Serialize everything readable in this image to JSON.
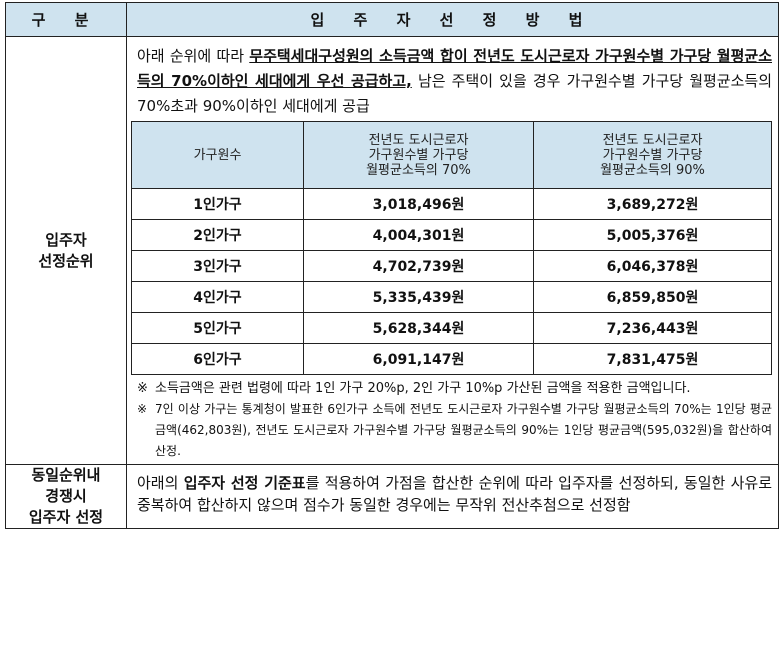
{
  "header": {
    "col1": "구 분",
    "col2": "입 주 자 선 정 방 법"
  },
  "section1": {
    "label_line1": "입주자",
    "label_line2": "선정순위",
    "intro": {
      "part1": "아래 순위에 따라 ",
      "bold": "무주택세대구성원의 소득금액 합이 전년도 도시근로자 가구원수별 가구당 월평균소득의 70%이하인 세대에게 우선 공급하고,",
      "part2": " 남은 주택이 있을 경우 가구원수별 가구당 월평균소득의 70%초과 90%이하인 세대에게 공급"
    },
    "table": {
      "headers": [
        [
          "가구원수"
        ],
        [
          "전년도 도시근로자",
          "가구원수별 가구당",
          "월평균소득의 70%"
        ],
        [
          "전년도 도시근로자",
          "가구원수별 가구당",
          "월평균소득의 90%"
        ]
      ],
      "rows": [
        [
          "1인가구",
          "3,018,496원",
          "3,689,272원"
        ],
        [
          "2인가구",
          "4,004,301원",
          "5,005,376원"
        ],
        [
          "3인가구",
          "4,702,739원",
          "6,046,378원"
        ],
        [
          "4인가구",
          "5,335,439원",
          "6,859,850원"
        ],
        [
          "5인가구",
          "5,628,344원",
          "7,236,443원"
        ],
        [
          "6인가구",
          "6,091,147원",
          "7,831,475원"
        ]
      ]
    },
    "notes": [
      {
        "mark": "※",
        "text": "소득금액은 관련 법령에 따라 1인 가구 20%p, 2인 가구 10%p 가산된 금액을 적용한 금액입니다."
      },
      {
        "mark": "※",
        "text": "7인 이상 가구는 통계청이 발표한 6인가구 소득에 전년도 도시근로자 가구원수별 가구당 월평균소득의 70%는 1인당 평균금액(462,803원), 전년도 도시근로자 가구원수별 가구당 월평균소득의 90%는 1인당 평균금액(595,032원)을 합산하여 산정."
      }
    ]
  },
  "section2": {
    "label_line1": "동일순위내",
    "label_line2": "경쟁시",
    "label_line3": "입주자 선정",
    "text_part1": "아래의 ",
    "text_bold": "입주자 선정 기준표",
    "text_part2": "를 적용하여 가점을 합산한 순위에 따라 입주자를 선정하되, 동일한 사유로 중복하여 합산하지 않으며 점수가 동일한 경우에는 무작위 전산추첨으로 선정함"
  },
  "colors": {
    "header_bg": "#cfe3ef",
    "border": "#222222"
  }
}
